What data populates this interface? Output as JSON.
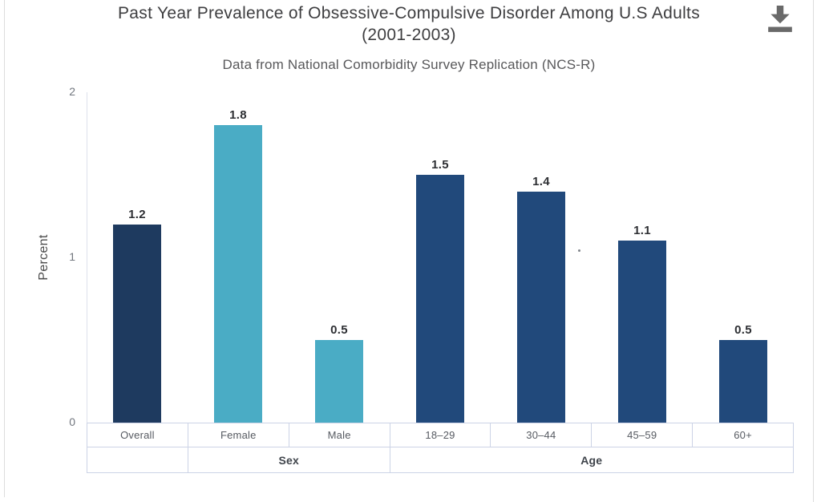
{
  "header": {
    "title_line1": "Past Year Prevalence of Obsessive-Compulsive Disorder Among U.S Adults",
    "title_line2": "(2001-2003)",
    "subtitle": "Data from National Comorbidity Survey Replication (NCS-R)"
  },
  "toolbar": {
    "download_icon": "download-icon"
  },
  "chart_data": {
    "type": "bar",
    "title": "Past Year Prevalence of Obsessive-Compulsive Disorder Among U.S Adults (2001-2003)",
    "subtitle": "Data from National Comorbidity Survey Replication (NCS-R)",
    "categories": [
      "Overall",
      "Female",
      "Male",
      "18–29",
      "30–44",
      "45–59",
      "60+"
    ],
    "values": [
      1.2,
      1.8,
      0.5,
      1.5,
      1.4,
      1.1,
      0.5
    ],
    "value_labels": [
      "1.2",
      "1.8",
      "0.5",
      "1.5",
      "1.4",
      "1.1",
      "0.5"
    ],
    "bar_colors": [
      "#1e3a5f",
      "#4aacc5",
      "#4aacc5",
      "#21497b",
      "#21497b",
      "#21497b",
      "#21497b"
    ],
    "xlabel": "",
    "ylabel": "Percent",
    "ylim": [
      0,
      2
    ],
    "yticks": [
      "0",
      "1",
      "2"
    ],
    "grid": false,
    "legend": "none",
    "group_labels": [
      {
        "label": "",
        "span": 1
      },
      {
        "label": "Sex",
        "span": 2
      },
      {
        "label": "Age",
        "span": 4
      }
    ]
  },
  "colors": {
    "overall_bar": "#1e3a5f",
    "sex_bars": "#4aacc5",
    "age_bars": "#21497b",
    "table_border": "#ccd3e6",
    "axis_line": "#dde1ec",
    "card_edge": "#dcdcdc",
    "title_text": "#3e3e40",
    "subtitle_text": "#58585a",
    "download_icon": "#696969"
  }
}
